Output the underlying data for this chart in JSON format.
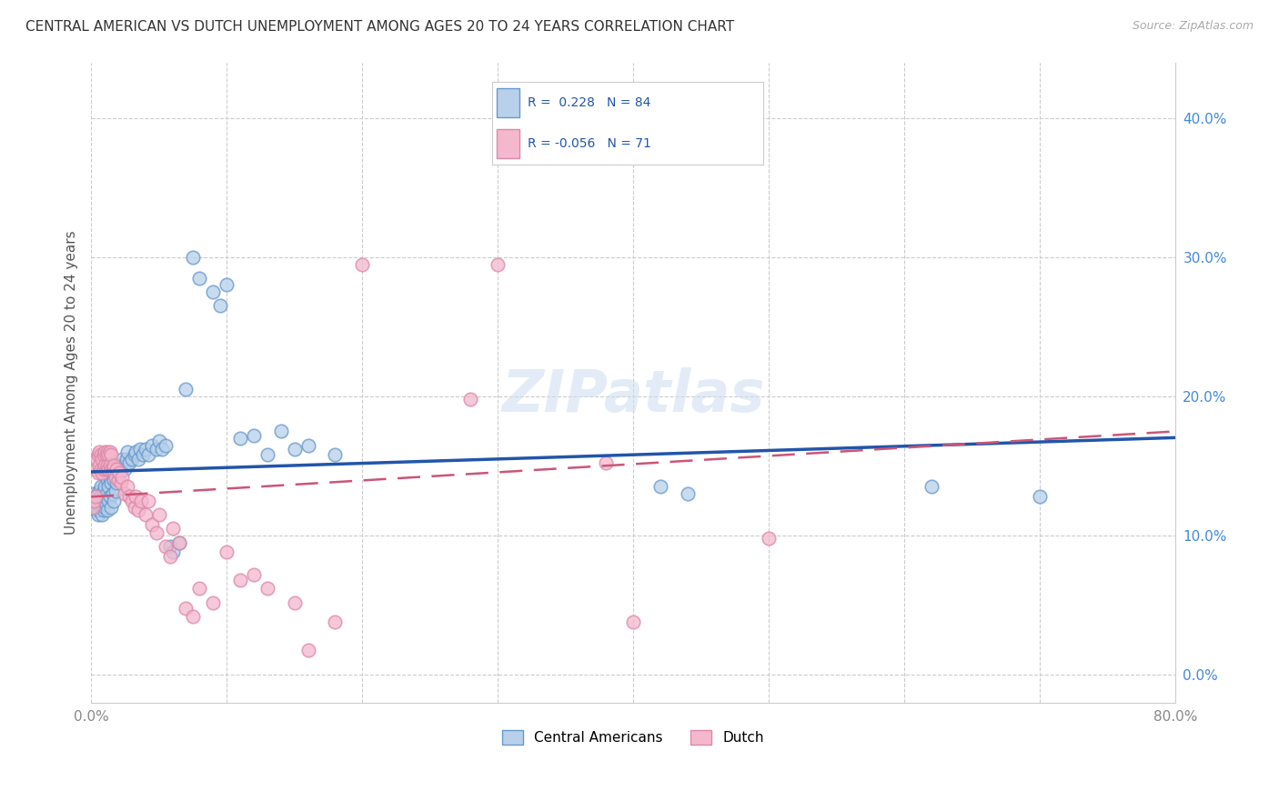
{
  "title": "CENTRAL AMERICAN VS DUTCH UNEMPLOYMENT AMONG AGES 20 TO 24 YEARS CORRELATION CHART",
  "source": "Source: ZipAtlas.com",
  "ylabel": "Unemployment Among Ages 20 to 24 years",
  "xmin": 0.0,
  "xmax": 0.8,
  "ymin": -0.02,
  "ymax": 0.44,
  "xticks": [
    0.0,
    0.1,
    0.2,
    0.3,
    0.4,
    0.5,
    0.6,
    0.7,
    0.8
  ],
  "yticks": [
    0.0,
    0.1,
    0.2,
    0.3,
    0.4
  ],
  "xtick_labels": [
    "0.0%",
    "",
    "",
    "",
    "",
    "",
    "",
    "",
    "80.0%"
  ],
  "ytick_labels_right": [
    "0.0%",
    "10.0%",
    "20.0%",
    "30.0%",
    "40.0%"
  ],
  "blue_R": 0.228,
  "blue_N": 84,
  "pink_R": -0.056,
  "pink_N": 71,
  "blue_scatter_color": "#b8d0ea",
  "blue_edge_color": "#6699cc",
  "blue_line_color": "#2255aa",
  "pink_scatter_color": "#f4b8cc",
  "pink_edge_color": "#dd88aa",
  "pink_line_color": "#cc5577",
  "legend_labels": [
    "Central Americans",
    "Dutch"
  ],
  "watermark": "ZIPatlas",
  "blue_x": [
    0.001,
    0.002,
    0.002,
    0.003,
    0.003,
    0.004,
    0.004,
    0.005,
    0.005,
    0.005,
    0.006,
    0.006,
    0.006,
    0.007,
    0.007,
    0.007,
    0.008,
    0.008,
    0.008,
    0.009,
    0.009,
    0.009,
    0.01,
    0.01,
    0.01,
    0.011,
    0.011,
    0.012,
    0.012,
    0.013,
    0.013,
    0.014,
    0.014,
    0.015,
    0.015,
    0.016,
    0.016,
    0.017,
    0.017,
    0.018,
    0.018,
    0.019,
    0.02,
    0.021,
    0.022,
    0.023,
    0.024,
    0.025,
    0.026,
    0.027,
    0.028,
    0.03,
    0.032,
    0.033,
    0.035,
    0.036,
    0.038,
    0.04,
    0.042,
    0.045,
    0.048,
    0.05,
    0.052,
    0.055,
    0.058,
    0.06,
    0.065,
    0.07,
    0.075,
    0.08,
    0.09,
    0.095,
    0.1,
    0.11,
    0.12,
    0.13,
    0.14,
    0.15,
    0.16,
    0.18,
    0.42,
    0.44,
    0.62,
    0.7
  ],
  "blue_y": [
    0.125,
    0.12,
    0.13,
    0.118,
    0.125,
    0.12,
    0.128,
    0.115,
    0.122,
    0.13,
    0.118,
    0.125,
    0.132,
    0.12,
    0.128,
    0.135,
    0.115,
    0.122,
    0.13,
    0.118,
    0.125,
    0.132,
    0.12,
    0.128,
    0.135,
    0.122,
    0.13,
    0.118,
    0.14,
    0.125,
    0.135,
    0.128,
    0.142,
    0.12,
    0.138,
    0.13,
    0.145,
    0.125,
    0.14,
    0.132,
    0.148,
    0.138,
    0.145,
    0.15,
    0.148,
    0.155,
    0.15,
    0.148,
    0.155,
    0.16,
    0.152,
    0.155,
    0.158,
    0.16,
    0.155,
    0.162,
    0.158,
    0.162,
    0.158,
    0.165,
    0.162,
    0.168,
    0.162,
    0.165,
    0.092,
    0.088,
    0.095,
    0.205,
    0.3,
    0.285,
    0.275,
    0.265,
    0.28,
    0.17,
    0.172,
    0.158,
    0.175,
    0.162,
    0.165,
    0.158,
    0.135,
    0.13,
    0.135,
    0.128
  ],
  "pink_x": [
    0.001,
    0.002,
    0.002,
    0.003,
    0.003,
    0.004,
    0.005,
    0.005,
    0.006,
    0.006,
    0.007,
    0.007,
    0.008,
    0.008,
    0.009,
    0.009,
    0.01,
    0.01,
    0.011,
    0.011,
    0.012,
    0.012,
    0.013,
    0.013,
    0.014,
    0.014,
    0.015,
    0.015,
    0.016,
    0.017,
    0.018,
    0.019,
    0.02,
    0.021,
    0.022,
    0.023,
    0.025,
    0.027,
    0.028,
    0.03,
    0.032,
    0.033,
    0.035,
    0.037,
    0.04,
    0.042,
    0.045,
    0.048,
    0.05,
    0.055,
    0.058,
    0.06,
    0.065,
    0.07,
    0.075,
    0.08,
    0.09,
    0.1,
    0.11,
    0.12,
    0.13,
    0.15,
    0.16,
    0.18,
    0.2,
    0.28,
    0.3,
    0.38,
    0.4,
    0.42,
    0.5
  ],
  "pink_y": [
    0.12,
    0.125,
    0.155,
    0.128,
    0.148,
    0.155,
    0.145,
    0.158,
    0.15,
    0.16,
    0.148,
    0.158,
    0.145,
    0.155,
    0.148,
    0.158,
    0.15,
    0.16,
    0.148,
    0.158,
    0.15,
    0.16,
    0.148,
    0.158,
    0.15,
    0.16,
    0.148,
    0.158,
    0.148,
    0.15,
    0.142,
    0.148,
    0.14,
    0.145,
    0.138,
    0.142,
    0.13,
    0.135,
    0.128,
    0.125,
    0.12,
    0.128,
    0.118,
    0.125,
    0.115,
    0.125,
    0.108,
    0.102,
    0.115,
    0.092,
    0.085,
    0.105,
    0.095,
    0.048,
    0.042,
    0.062,
    0.052,
    0.088,
    0.068,
    0.072,
    0.062,
    0.052,
    0.018,
    0.038,
    0.295,
    0.198,
    0.295,
    0.152,
    0.038,
    0.375,
    0.098
  ]
}
